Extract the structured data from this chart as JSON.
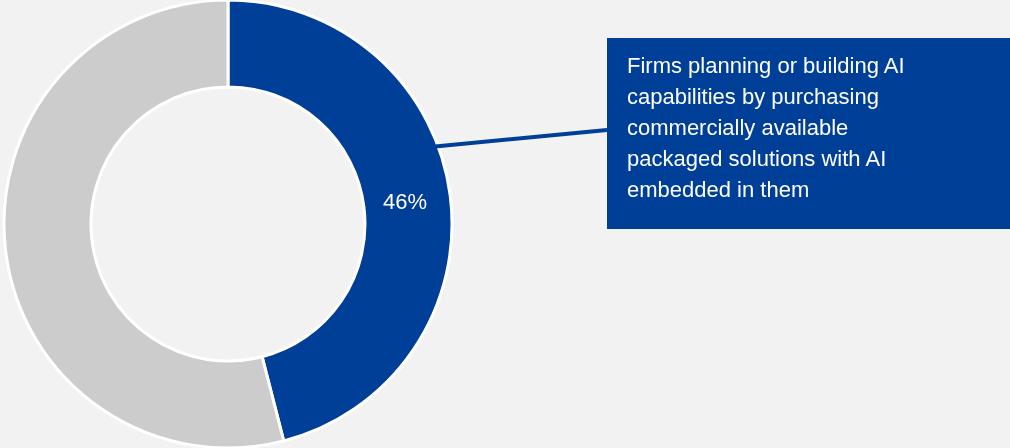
{
  "chart_data": {
    "type": "donut",
    "categories": [
      null,
      null
    ],
    "values": [
      46,
      54
    ],
    "colors": [
      "#003f98",
      "#cccccc"
    ],
    "value_labels": [
      "46%",
      null
    ],
    "annotations": [
      "Firms planning or building AI capabilities by purchasing commercially available packaged solutions with AI embedded in them"
    ]
  }
}
